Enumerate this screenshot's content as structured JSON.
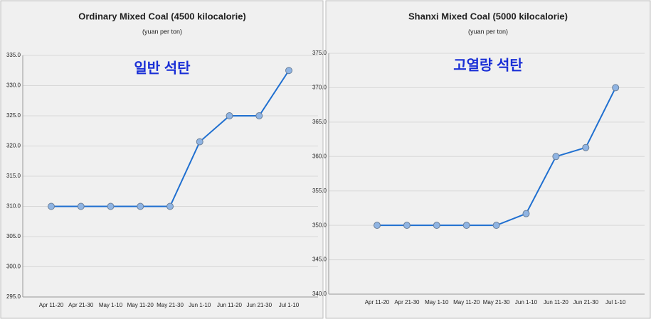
{
  "chart_data": [
    {
      "type": "line",
      "title": "Ordinary Mixed Coal (4500 kilocalorie)",
      "subtitle": "(yuan per ton)",
      "annotation": "일반 석탄",
      "categories": [
        "Apr 11-20",
        "Apr 21-30",
        "May 1-10",
        "May 11-20",
        "May 21-30",
        "Jun 1-10",
        "Jun 11-20",
        "Jun 21-30",
        "Jul 1-10"
      ],
      "series": [
        {
          "color": "#1f6fd0",
          "values": [
            310,
            310,
            310,
            310,
            310,
            320.7,
            325,
            325,
            332.5
          ]
        }
      ],
      "ylim": [
        295,
        335
      ],
      "yticks": [
        {
          "value": 295,
          "label": "295.0"
        },
        {
          "value": 300,
          "label": "300.0"
        },
        {
          "value": 305,
          "label": "305.0"
        },
        {
          "value": 310,
          "label": "310.0"
        },
        {
          "value": 315,
          "label": "315.0"
        },
        {
          "value": 320,
          "label": "320.0"
        },
        {
          "value": 325,
          "label": "325.0"
        },
        {
          "value": 330,
          "label": "330.0"
        },
        {
          "value": 335,
          "label": "335.0"
        }
      ],
      "grid": true
    },
    {
      "type": "line",
      "title": "Shanxi Mixed Coal (5000 kilocalorie)",
      "subtitle": "(yuan per ton)",
      "annotation": "고열량 석탄",
      "categories": [
        "Apr 11-20",
        "Apr 21-30",
        "May 1-10",
        "May 11-20",
        "May 21-30",
        "Jun 1-10",
        "Jun 11-20",
        "Jun 21-30",
        "Jul 1-10"
      ],
      "series": [
        {
          "color": "#1f6fd0",
          "values": [
            350,
            350,
            350,
            350,
            350,
            351.7,
            360,
            361.3,
            370
          ]
        }
      ],
      "ylim": [
        340,
        375
      ],
      "yticks": [
        {
          "value": 340,
          "label": "340.0"
        },
        {
          "value": 345,
          "label": "345.0"
        },
        {
          "value": 350,
          "label": "350.0"
        },
        {
          "value": 355,
          "label": "355.0"
        },
        {
          "value": 360,
          "label": "360.0"
        },
        {
          "value": 365,
          "label": "365.0"
        },
        {
          "value": 370,
          "label": "370.0"
        },
        {
          "value": 375,
          "label": "375.0"
        }
      ],
      "grid": true
    }
  ]
}
